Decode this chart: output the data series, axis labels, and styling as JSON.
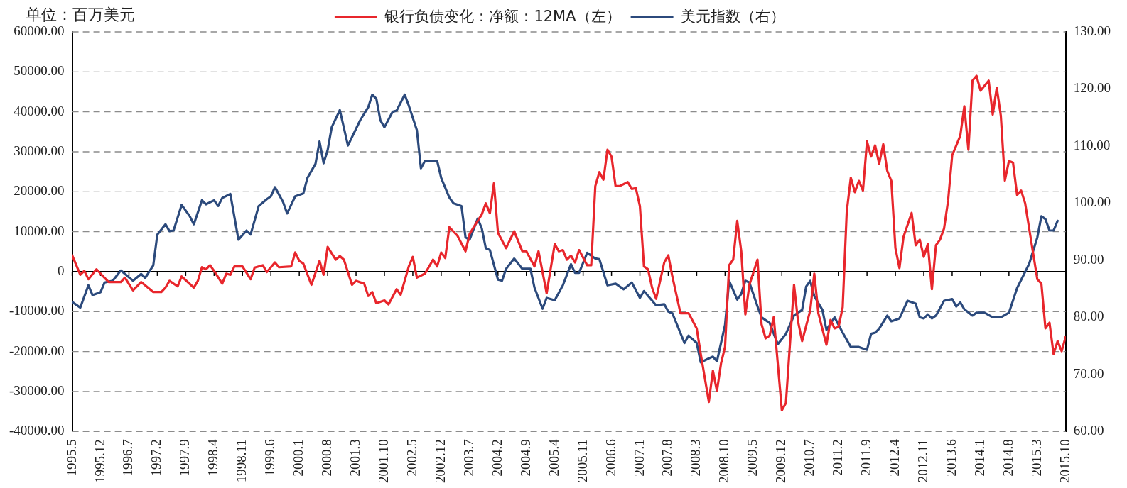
{
  "chart_data": {
    "type": "line",
    "ylabel": "单位：百万美元",
    "legend": "top",
    "grid": "y",
    "xlim": [
      "1995-05",
      "2015-10"
    ],
    "xticks": [
      {
        "value": "1995-05",
        "label": "1995.5"
      },
      {
        "value": "1995-12",
        "label": "1995.12"
      },
      {
        "value": "1996-07",
        "label": "1996.7"
      },
      {
        "value": "1997-02",
        "label": "1997.2"
      },
      {
        "value": "1997-09",
        "label": "1997.9"
      },
      {
        "value": "1998-04",
        "label": "1998.4"
      },
      {
        "value": "1998-11",
        "label": "1998.11"
      },
      {
        "value": "1999-06",
        "label": "1999.6"
      },
      {
        "value": "2000-01",
        "label": "2000.1"
      },
      {
        "value": "2000-08",
        "label": "2000.8"
      },
      {
        "value": "2001-03",
        "label": "2001.3"
      },
      {
        "value": "2001-10",
        "label": "2001.10"
      },
      {
        "value": "2002-05",
        "label": "2002.5"
      },
      {
        "value": "2002-12",
        "label": "2002.12"
      },
      {
        "value": "2003-07",
        "label": "2003.7"
      },
      {
        "value": "2004-02",
        "label": "2004.2"
      },
      {
        "value": "2004-09",
        "label": "2004.9"
      },
      {
        "value": "2005-04",
        "label": "2005.4"
      },
      {
        "value": "2005-11",
        "label": "2005.11"
      },
      {
        "value": "2006-06",
        "label": "2006.6"
      },
      {
        "value": "2007-01",
        "label": "2007.1"
      },
      {
        "value": "2007-08",
        "label": "2007.8"
      },
      {
        "value": "2008-03",
        "label": "2008.3"
      },
      {
        "value": "2008-10",
        "label": "2008.10"
      },
      {
        "value": "2009-05",
        "label": "2009.5"
      },
      {
        "value": "2009-12",
        "label": "2009.12"
      },
      {
        "value": "2010-07",
        "label": "2010.7"
      },
      {
        "value": "2011-02",
        "label": "2011.2"
      },
      {
        "value": "2011-09",
        "label": "2011.9"
      },
      {
        "value": "2012-04",
        "label": "2012.4"
      },
      {
        "value": "2012-11",
        "label": "2012.11"
      },
      {
        "value": "2013-06",
        "label": "2013.6"
      },
      {
        "value": "2014-01",
        "label": "2014.1"
      },
      {
        "value": "2014-08",
        "label": "2014.8"
      },
      {
        "value": "2015-03",
        "label": "2015.3"
      },
      {
        "value": "2015-10",
        "label": "2015.10"
      }
    ],
    "ylim": [
      -40000,
      60000
    ],
    "yticks": [
      {
        "value": -40000,
        "label": "-40000.00"
      },
      {
        "value": -30000,
        "label": "-30000.00"
      },
      {
        "value": -20000,
        "label": "-20000.00"
      },
      {
        "value": -10000,
        "label": "-10000.00"
      },
      0,
      {
        "value": 10000,
        "label": "10000.00"
      },
      {
        "value": 20000,
        "label": "20000.00"
      },
      {
        "value": 30000,
        "label": "30000.00"
      },
      {
        "value": 40000,
        "label": "40000.00"
      },
      {
        "value": 50000,
        "label": "50000.00"
      },
      {
        "value": 60000,
        "label": "60000.00"
      }
    ],
    "y2lim": [
      60,
      130
    ],
    "y2ticks": [
      {
        "value": 60,
        "label": "60.00"
      },
      {
        "value": 70,
        "label": "70.00"
      },
      {
        "value": 80,
        "label": "80.00"
      },
      {
        "value": 90,
        "label": "90.00"
      },
      {
        "value": 100,
        "label": "100.00"
      },
      {
        "value": 110,
        "label": "110.00"
      },
      {
        "value": 120,
        "label": "120.00"
      },
      {
        "value": 130,
        "label": "130.00"
      }
    ],
    "series": [
      {
        "name": "银行负债变化：净额：12MA（左）",
        "color": "#e8262c",
        "x": [
          "1995-05",
          "1995-07",
          "1995-08",
          "1995-09",
          "1995-11",
          "1995-12",
          "1996-02",
          "1996-05",
          "1996-06",
          "1996-08",
          "1996-10",
          "1997-01",
          "1997-03",
          "1997-04",
          "1997-05",
          "1997-07",
          "1997-08",
          "1997-11",
          "1997-12",
          "1998-01",
          "1998-02",
          "1998-03",
          "1998-04",
          "1998-06",
          "1998-07",
          "1998-08",
          "1998-09",
          "1998-11",
          "1999-01",
          "1999-02",
          "1999-04",
          "1999-05",
          "1999-07",
          "1999-08",
          "1999-11",
          "1999-12",
          "2000-01",
          "2000-02",
          "2000-04",
          "2000-06",
          "2000-07",
          "2000-08",
          "2000-10",
          "2000-11",
          "2000-12",
          "2001-02",
          "2001-03",
          "2001-05",
          "2001-06",
          "2001-07",
          "2001-08",
          "2001-10",
          "2001-11",
          "2002-01",
          "2002-02",
          "2002-04",
          "2002-05",
          "2002-06",
          "2002-08",
          "2002-10",
          "2002-11",
          "2002-12",
          "2003-01",
          "2003-02",
          "2003-04",
          "2003-06",
          "2003-07",
          "2003-08",
          "2003-10",
          "2003-11",
          "2003-12",
          "2004-01",
          "2004-02",
          "2004-04",
          "2004-06",
          "2004-08",
          "2004-09",
          "2004-11",
          "2004-12",
          "2005-02",
          "2005-04",
          "2005-05",
          "2005-06",
          "2005-07",
          "2005-08",
          "2005-09",
          "2005-10",
          "2005-12",
          "2006-01",
          "2006-02",
          "2006-03",
          "2006-04",
          "2006-05",
          "2006-06",
          "2006-07",
          "2006-08",
          "2006-10",
          "2006-11",
          "2006-12",
          "2007-01",
          "2007-02",
          "2007-03",
          "2007-04",
          "2007-05",
          "2007-07",
          "2007-08",
          "2007-09",
          "2007-11",
          "2008-01",
          "2008-03",
          "2008-04",
          "2008-06",
          "2008-07",
          "2008-08",
          "2008-09",
          "2008-10",
          "2008-11",
          "2008-12",
          "2009-01",
          "2009-02",
          "2009-03",
          "2009-04",
          "2009-06",
          "2009-07",
          "2009-08",
          "2009-09",
          "2009-10",
          "2009-12",
          "2010-01",
          "2010-03",
          "2010-04",
          "2010-05",
          "2010-07",
          "2010-08",
          "2010-09",
          "2010-11",
          "2010-12",
          "2011-01",
          "2011-02",
          "2011-03",
          "2011-04",
          "2011-05",
          "2011-06",
          "2011-07",
          "2011-08",
          "2011-09",
          "2011-10",
          "2011-11",
          "2011-12",
          "2012-01",
          "2012-02",
          "2012-03",
          "2012-04",
          "2012-05",
          "2012-06",
          "2012-08",
          "2012-09",
          "2012-10",
          "2012-11",
          "2012-12",
          "2013-01",
          "2013-02",
          "2013-03",
          "2013-04",
          "2013-05",
          "2013-06",
          "2013-08",
          "2013-09",
          "2013-10",
          "2013-11",
          "2013-12",
          "2014-01",
          "2014-03",
          "2014-04",
          "2014-05",
          "2014-06",
          "2014-07",
          "2014-08",
          "2014-09",
          "2014-10",
          "2014-11",
          "2014-12",
          "2015-02",
          "2015-03",
          "2015-04",
          "2015-05",
          "2015-06",
          "2015-07",
          "2015-08",
          "2015-09",
          "2015-10"
        ],
        "values": [
          4100,
          -800,
          200,
          -1900,
          600,
          -500,
          -2600,
          -2600,
          -1500,
          -4700,
          -2600,
          -5100,
          -5100,
          -4000,
          -2300,
          -3700,
          -1200,
          -4000,
          -2300,
          1100,
          600,
          1600,
          200,
          -3000,
          -500,
          -800,
          1300,
          1300,
          -1900,
          1000,
          1600,
          -100,
          2300,
          1100,
          1300,
          4800,
          2700,
          2000,
          -3300,
          2700,
          -800,
          6200,
          3000,
          3900,
          3000,
          -3300,
          -2300,
          -3000,
          -6100,
          -5100,
          -7900,
          -7200,
          -8200,
          -4400,
          -5800,
          1300,
          3700,
          -1500,
          -500,
          3000,
          1300,
          4800,
          3400,
          11100,
          9000,
          5100,
          9400,
          11100,
          14300,
          17100,
          14600,
          22100,
          9700,
          5900,
          10100,
          5100,
          5100,
          1300,
          5100,
          -5400,
          6900,
          5100,
          5400,
          3000,
          4000,
          2300,
          5400,
          1600,
          1600,
          21400,
          24900,
          23000,
          30500,
          28800,
          21400,
          21400,
          22400,
          20700,
          20900,
          16400,
          1300,
          600,
          -4000,
          -6800,
          2300,
          4100,
          -1200,
          -10400,
          -10400,
          -14200,
          -20600,
          -32600,
          -24800,
          -29900,
          -23000,
          -18800,
          1600,
          3000,
          12700,
          5000,
          -10700,
          -3300,
          3000,
          -13200,
          -16700,
          -16000,
          -11400,
          -34700,
          -32900,
          -3300,
          -12500,
          -17400,
          -9700,
          -500,
          -10400,
          -18300,
          -12100,
          -14200,
          -13800,
          -8900,
          15000,
          23500,
          19900,
          22700,
          20300,
          32600,
          28800,
          31600,
          27000,
          31900,
          25200,
          22700,
          5900,
          900,
          8700,
          14700,
          6600,
          8000,
          3700,
          6900,
          -4400,
          6600,
          8000,
          10800,
          17800,
          29100,
          34000,
          41400,
          30500,
          47800,
          49000,
          45300,
          47800,
          39300,
          46000,
          39000,
          22800,
          27700,
          27300,
          19200,
          20300,
          17100,
          4400,
          -1900,
          -3000,
          -14200,
          -12800,
          -20600,
          -17400,
          -19900,
          -16300
        ]
      },
      {
        "name": "美元指数（右）",
        "color": "#2c4a7c",
        "axis": "y2",
        "x": [
          "1995-05",
          "1995-07",
          "1995-09",
          "1995-10",
          "1995-12",
          "1996-01",
          "1996-03",
          "1996-05",
          "1996-08",
          "1996-10",
          "1996-11",
          "1997-01",
          "1997-02",
          "1997-04",
          "1997-05",
          "1997-06",
          "1997-08",
          "1997-10",
          "1997-11",
          "1998-01",
          "1998-02",
          "1998-04",
          "1998-05",
          "1998-06",
          "1998-08",
          "1998-10",
          "1998-12",
          "1999-01",
          "1999-03",
          "1999-05",
          "1999-06",
          "1999-07",
          "1999-09",
          "1999-10",
          "1999-12",
          "2000-02",
          "2000-03",
          "2000-05",
          "2000-06",
          "2000-07",
          "2000-08",
          "2000-09",
          "2000-11",
          "2001-01",
          "2001-04",
          "2001-06",
          "2001-07",
          "2001-08",
          "2001-09",
          "2001-10",
          "2001-12",
          "2002-01",
          "2002-03",
          "2002-04",
          "2002-06",
          "2002-07",
          "2002-08",
          "2002-11",
          "2002-12",
          "2003-02",
          "2003-03",
          "2003-05",
          "2003-06",
          "2003-07",
          "2003-09",
          "2003-10",
          "2003-11",
          "2003-12",
          "2004-02",
          "2004-03",
          "2004-04",
          "2004-06",
          "2004-08",
          "2004-10",
          "2004-11",
          "2005-01",
          "2005-02",
          "2005-04",
          "2005-06",
          "2005-08",
          "2005-09",
          "2005-10",
          "2005-12",
          "2006-02",
          "2006-03",
          "2006-05",
          "2006-07",
          "2006-09",
          "2006-11",
          "2007-01",
          "2007-02",
          "2007-05",
          "2007-07",
          "2007-08",
          "2007-09",
          "2007-12",
          "2008-01",
          "2008-03",
          "2008-04",
          "2008-06",
          "2008-07",
          "2008-08",
          "2008-10",
          "2008-11",
          "2009-01",
          "2009-02",
          "2009-03",
          "2009-04",
          "2009-06",
          "2009-07",
          "2009-09",
          "2009-11",
          "2010-01",
          "2010-03",
          "2010-05",
          "2010-06",
          "2010-07",
          "2010-08",
          "2010-10",
          "2010-11",
          "2011-01",
          "2011-03",
          "2011-05",
          "2011-07",
          "2011-09",
          "2011-10",
          "2011-11",
          "2011-12",
          "2012-02",
          "2012-03",
          "2012-05",
          "2012-07",
          "2012-09",
          "2012-10",
          "2012-11",
          "2012-12",
          "2013-01",
          "2013-02",
          "2013-04",
          "2013-06",
          "2013-07",
          "2013-08",
          "2013-09",
          "2013-11",
          "2013-12",
          "2014-02",
          "2014-04",
          "2014-06",
          "2014-08",
          "2014-10",
          "2015-01",
          "2015-03",
          "2015-04",
          "2015-05",
          "2015-06",
          "2015-07",
          "2015-08"
        ],
        "values": [
          82.7,
          81.7,
          85.6,
          83.9,
          84.4,
          86.1,
          86.4,
          88.2,
          86.4,
          87.6,
          86.9,
          89.1,
          94.5,
          96.3,
          95.1,
          95.2,
          99.7,
          97.7,
          96.3,
          100.5,
          99.8,
          100.5,
          99.5,
          100.9,
          101.6,
          93.6,
          95.2,
          94.5,
          99.5,
          100.7,
          101.2,
          102.8,
          100.2,
          98.2,
          101.2,
          101.7,
          104.4,
          106.9,
          110.8,
          107.0,
          109.3,
          113.3,
          116.3,
          110.1,
          114.5,
          116.8,
          119.0,
          118.3,
          114.5,
          113.3,
          116.0,
          116.2,
          119.0,
          117.1,
          112.8,
          106.1,
          107.4,
          107.4,
          104.4,
          101.0,
          100.0,
          99.5,
          94.0,
          93.6,
          97.3,
          95.6,
          92.1,
          91.8,
          86.6,
          86.4,
          88.5,
          90.3,
          88.5,
          88.5,
          85.2,
          81.5,
          83.4,
          83.0,
          85.6,
          89.3,
          87.8,
          87.8,
          91.3,
          90.3,
          90.2,
          85.6,
          85.9,
          84.9,
          86.1,
          83.4,
          84.6,
          82.1,
          82.3,
          81.0,
          80.7,
          75.5,
          76.8,
          75.5,
          72.1,
          72.8,
          73.1,
          72.3,
          78.7,
          86.4,
          83.1,
          84.1,
          86.4,
          86.1,
          81.9,
          80.0,
          79.0,
          75.3,
          77.1,
          80.3,
          81.3,
          85.4,
          86.4,
          83.7,
          81.3,
          77.8,
          80.0,
          77.3,
          74.8,
          74.8,
          74.3,
          77.1,
          77.3,
          78.0,
          80.3,
          79.3,
          79.8,
          82.9,
          82.4,
          80.0,
          79.8,
          80.5,
          79.8,
          80.3,
          82.9,
          83.2,
          81.9,
          82.6,
          81.4,
          80.3,
          80.8,
          80.8,
          80.0,
          80.0,
          80.8,
          85.1,
          89.4,
          94.0,
          97.7,
          97.2,
          95.2,
          95.2,
          96.9
        ]
      }
    ]
  }
}
